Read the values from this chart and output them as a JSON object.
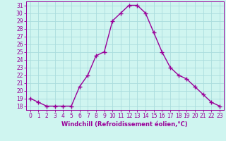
{
  "x": [
    0,
    1,
    2,
    3,
    4,
    5,
    6,
    7,
    8,
    9,
    10,
    11,
    12,
    13,
    14,
    15,
    16,
    17,
    18,
    19,
    20,
    21,
    22,
    23
  ],
  "y": [
    19,
    18.5,
    18,
    18,
    18,
    18,
    20.5,
    22,
    24.5,
    25,
    29,
    30,
    31,
    31,
    30,
    27.5,
    25,
    23,
    22,
    21.5,
    20.5,
    19.5,
    18.5,
    18
  ],
  "line_color": "#990099",
  "marker": "+",
  "marker_size": 4,
  "marker_lw": 1.0,
  "line_width": 1.0,
  "bg_color": "#cff5f0",
  "grid_color": "#aadddd",
  "xlabel": "Windchill (Refroidissement éolien,°C)",
  "xlabel_color": "#990099",
  "tick_color": "#990099",
  "spine_color": "#990099",
  "ylim": [
    17.5,
    31.5
  ],
  "xlim": [
    -0.5,
    23.5
  ],
  "yticks": [
    18,
    19,
    20,
    21,
    22,
    23,
    24,
    25,
    26,
    27,
    28,
    29,
    30,
    31
  ],
  "xticks": [
    0,
    1,
    2,
    3,
    4,
    5,
    6,
    7,
    8,
    9,
    10,
    11,
    12,
    13,
    14,
    15,
    16,
    17,
    18,
    19,
    20,
    21,
    22,
    23
  ],
  "tick_fontsize": 5.5,
  "xlabel_fontsize": 6.0,
  "xlabel_fontweight": "bold"
}
